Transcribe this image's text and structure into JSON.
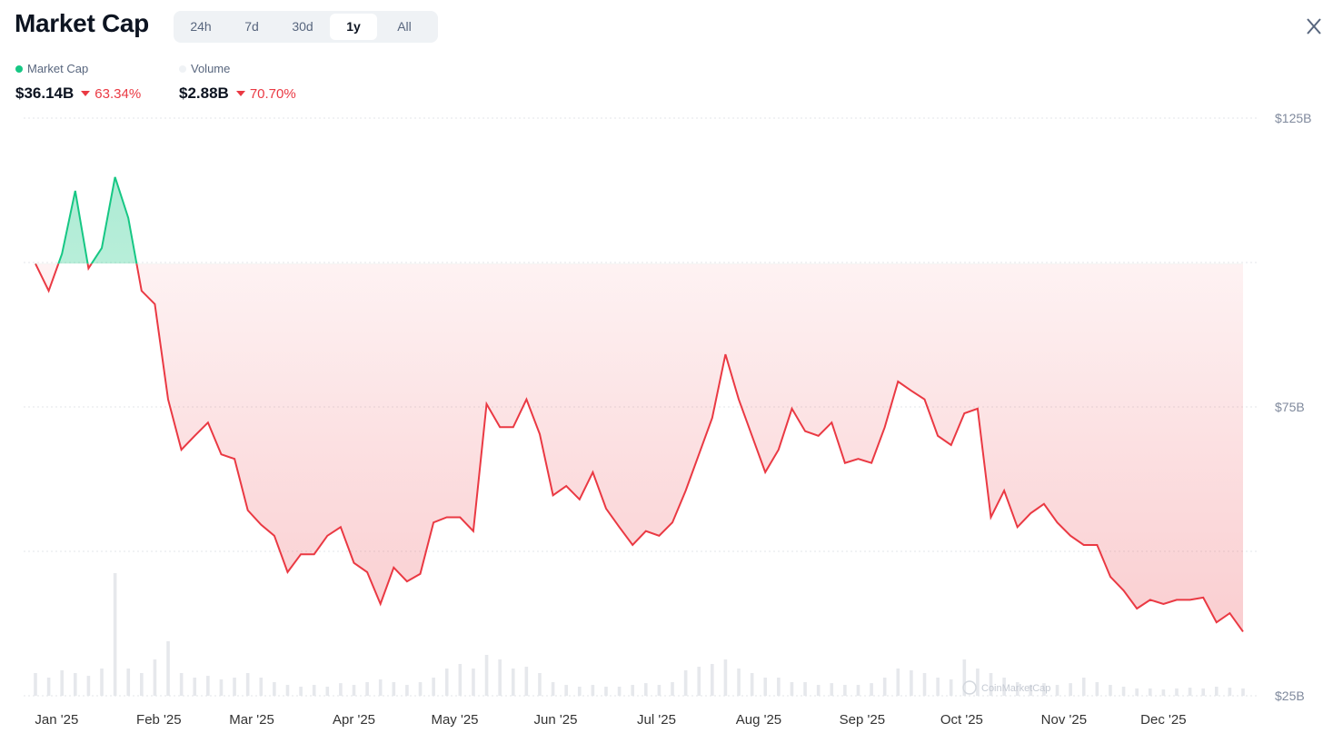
{
  "header": {
    "title": "Market Cap",
    "tabs": [
      "24h",
      "7d",
      "30d",
      "1y",
      "All"
    ],
    "active_tab": 3
  },
  "stats": [
    {
      "value": "$36.14B",
      "change": "63.34%"
    },
    {
      "value": "$2.88B",
      "change": "70.70%"
    }
  ],
  "watermark": "CoinMarketCap",
  "chart_data": {
    "type": "line",
    "xlim": [
      0,
      91
    ],
    "xticks": [
      {
        "value": 1.6,
        "label": "Jan '25"
      },
      {
        "value": 9.3,
        "label": "Feb '25"
      },
      {
        "value": 16.3,
        "label": "Mar '25"
      },
      {
        "value": 24.0,
        "label": "Apr '25"
      },
      {
        "value": 31.6,
        "label": "May '25"
      },
      {
        "value": 39.2,
        "label": "Jun '25"
      },
      {
        "value": 46.8,
        "label": "Jul '25"
      },
      {
        "value": 54.5,
        "label": "Aug '25"
      },
      {
        "value": 62.3,
        "label": "Sep '25"
      },
      {
        "value": 69.8,
        "label": "Oct '25"
      },
      {
        "value": 77.5,
        "label": "Nov '25"
      },
      {
        "value": 85.0,
        "label": "Dec '25"
      }
    ],
    "ylim": [
      25,
      125
    ],
    "yticks": [
      {
        "value": 125,
        "label": "$125B"
      },
      {
        "value": 100,
        "label": null
      },
      {
        "value": 75,
        "label": "$75B"
      },
      {
        "value": 50,
        "label": null
      },
      {
        "value": 25,
        "label": "$25B"
      }
    ],
    "grid": true,
    "up_color": "#16c784",
    "down_color": "#ea3943",
    "series": [
      {
        "name": "Market Cap",
        "color": "#ea3943",
        "values": [
          99.8,
          95.1,
          101.5,
          112.4,
          99,
          102.5,
          114.8,
          107.7,
          95.1,
          92.8,
          76.3,
          67.6,
          70,
          72.3,
          66.8,
          66,
          57.1,
          54.6,
          52.7,
          46.4,
          49.5,
          49.5,
          52.7,
          54.2,
          48,
          46.4,
          40.9,
          47.2,
          44.8,
          46.1,
          55,
          55.9,
          55.9,
          53.5,
          75.5,
          71.5,
          71.5,
          76.3,
          70.3,
          59.7,
          61.3,
          59,
          63.7,
          57.4,
          54.2,
          51.1,
          53.5,
          52.7,
          55,
          60.5,
          66.8,
          73.1,
          84.1,
          76.3,
          70,
          63.7,
          67.6,
          74.7,
          70.8,
          70,
          72.3,
          65.3,
          66,
          65.3,
          71.5,
          79.4,
          77.8,
          76.3,
          70,
          68.4,
          73.9,
          74.7,
          55.9,
          60.5,
          54.2,
          56.6,
          58.2,
          55,
          52.7,
          51.1,
          51.1,
          45.6,
          43.2,
          40.1,
          41.6,
          40.9,
          41.6,
          41.6,
          42,
          37.7,
          39.3,
          36.1
        ]
      },
      {
        "name": "Volume",
        "type": "bar",
        "color": "#e6e8ec",
        "values": [
          9,
          7.2,
          10.1,
          9,
          7.9,
          10.8,
          48.6,
          10.8,
          9,
          14.4,
          21.6,
          9,
          7.2,
          7.9,
          6.5,
          7.2,
          9,
          7.2,
          5.4,
          4.3,
          3.6,
          4.3,
          3.6,
          5,
          4.3,
          5.4,
          6.5,
          5.4,
          4.3,
          5.4,
          7.2,
          10.8,
          12.6,
          10.8,
          16.2,
          14.4,
          10.8,
          11.5,
          9,
          5.4,
          4.3,
          3.6,
          4.3,
          3.6,
          3.6,
          4.3,
          5,
          4.3,
          5.4,
          10.1,
          11.5,
          12.6,
          14.4,
          10.8,
          9,
          7.2,
          7.2,
          5.4,
          5.4,
          4.3,
          5,
          4.3,
          4.3,
          5,
          7.2,
          10.8,
          10.1,
          9,
          7.2,
          6.5,
          14.4,
          10.8,
          9,
          7.2,
          5.4,
          4.3,
          5,
          4.3,
          5,
          7.2,
          5.4,
          4.3,
          3.6,
          2.9,
          2.9,
          2.5,
          2.9,
          3.2,
          2.9,
          3.6,
          3.2,
          2.9
        ]
      }
    ]
  }
}
